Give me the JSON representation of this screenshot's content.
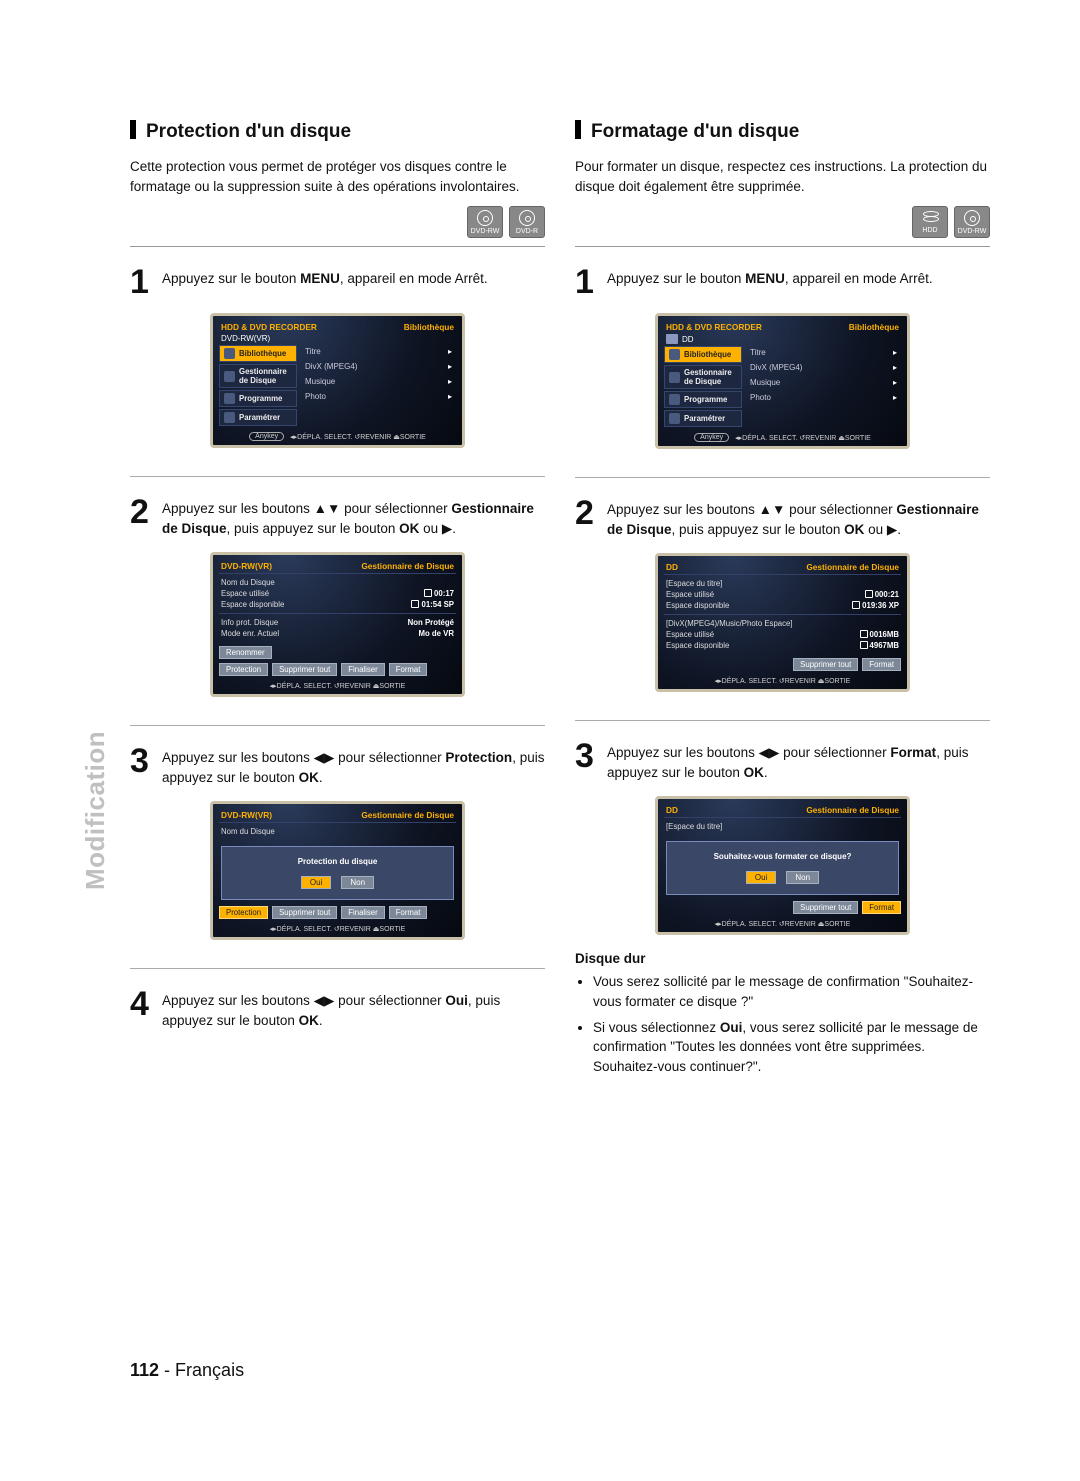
{
  "page": {
    "side_label": "Modification",
    "number": "112",
    "sep": " - ",
    "lang": "Français"
  },
  "left": {
    "title": "Protection d'un disque",
    "intro": "Cette protection vous permet de protéger vos disques contre le formatage ou la suppression suite à des opérations involontaires.",
    "icons": [
      "DVD-RW",
      "DVD-R"
    ],
    "step1": {
      "num": "1",
      "text_a": "Appuyez sur le bouton ",
      "bold_a": "MENU",
      "text_b": ", appareil en mode Arrêt."
    },
    "screen1": {
      "header_left": "HDD & DVD RECORDER",
      "header_right": "Bibliothèque",
      "crumb": "DVD-RW(VR)",
      "side": [
        "Bibliothèque",
        "Gestionnaire de Disque",
        "Programme",
        "Paramétrer"
      ],
      "side_sel": 0,
      "opts": [
        "Titre",
        "DivX (MPEG4)",
        "Musique",
        "Photo"
      ],
      "footer_pill": "Anykey",
      "footer": "◂▸DÉPLA.   SELECT.   ↺REVENIR   ⏏SORTIE"
    },
    "step2": {
      "num": "2",
      "text_a": "Appuyez sur les boutons ▲▼ pour sélectionner ",
      "bold_a": "Gestionnaire de Disque",
      "text_b": ", puis appuyez sur le bouton ",
      "bold_b": "OK",
      "text_c": " ou ▶."
    },
    "screen2": {
      "header_left": "DVD-RW(VR)",
      "header_right": "Gestionnaire de Disque",
      "lines1": [
        {
          "k": "Nom du Disque",
          "v": ""
        },
        {
          "k": "Espace utilisé",
          "v": "00:17"
        },
        {
          "k": "Espace disponible",
          "v": "01:54 SP"
        }
      ],
      "lines2": [
        {
          "k": "Info prot. Disque",
          "v": "Non Protégé"
        },
        {
          "k": "Mode enr. Actuel",
          "v": "Mo de VR"
        }
      ],
      "row1": [
        "Renommer"
      ],
      "row2": [
        "Protection",
        "Supprimer tout",
        "Finaliser",
        "Format"
      ],
      "footer": "◂▸DÉPLA.   SELECT.   ↺REVENIR   ⏏SORTIE"
    },
    "step3": {
      "num": "3",
      "text_a": "Appuyez sur les boutons ◀▶ pour sélectionner ",
      "bold_a": "Protection",
      "text_b": ", puis appuyez sur le bouton ",
      "bold_b": "OK",
      "text_c": "."
    },
    "screen3": {
      "header_left": "DVD-RW(VR)",
      "header_right": "Gestionnaire de Disque",
      "line_k": "Nom du Disque",
      "dialog_title": "Protection du disque",
      "yes": "Oui",
      "no": "Non",
      "row": [
        "Protection",
        "Supprimer tout",
        "Finaliser",
        "Format"
      ],
      "footer": "◂▸DÉPLA.   SELECT.   ↺REVENIR   ⏏SORTIE"
    },
    "step4": {
      "num": "4",
      "text_a": "Appuyez sur les boutons ◀▶ pour sélectionner ",
      "bold_a": "Oui",
      "text_b": ", puis appuyez sur le bouton ",
      "bold_b": "OK",
      "text_c": "."
    }
  },
  "right": {
    "title": "Formatage d'un disque",
    "intro": "Pour formater un disque, respectez ces instructions. La protection du disque doit également être supprimée.",
    "icons": [
      "HDD",
      "DVD-RW"
    ],
    "step1": {
      "num": "1",
      "text_a": "Appuyez sur le bouton ",
      "bold_a": "MENU",
      "text_b": ", appareil en mode Arrêt."
    },
    "screen1": {
      "header_left": "HDD & DVD RECORDER",
      "header_right": "Bibliothèque",
      "crumb": "DD",
      "side": [
        "Bibliothèque",
        "Gestionnaire de Disque",
        "Programme",
        "Paramétrer"
      ],
      "side_sel": 0,
      "opts": [
        "Titre",
        "DivX (MPEG4)",
        "Musique",
        "Photo"
      ],
      "footer_pill": "Anykey",
      "footer": "◂▸DÉPLA.   SELECT.   ↺REVENIR   ⏏SORTIE"
    },
    "step2": {
      "num": "2",
      "text_a": "Appuyez sur les boutons ▲▼ pour sélectionner ",
      "bold_a": "Gestionnaire de Disque",
      "text_b": ", puis appuyez sur le bouton ",
      "bold_b": "OK",
      "text_c": " ou ▶."
    },
    "screen2": {
      "header_left": "DD",
      "header_right": "Gestionnaire de Disque",
      "group1_title": "[Espace du titre]",
      "group1_lines": [
        {
          "k": "Espace utilisé",
          "v": "000:21"
        },
        {
          "k": "Espace disponible",
          "v": "019:36 XP"
        }
      ],
      "group2_title": "[DivX(MPEG4)/Music/Photo Espace]",
      "group2_lines": [
        {
          "k": "Espace utilisé",
          "v": "0016MB"
        },
        {
          "k": "Espace disponible",
          "v": "4967MB"
        }
      ],
      "row": [
        "Supprimer tout",
        "Format"
      ],
      "footer": "◂▸DÉPLA.   SELECT.   ↺REVENIR   ⏏SORTIE"
    },
    "step3": {
      "num": "3",
      "text_a": "Appuyez sur les boutons ◀▶ pour sélectionner ",
      "bold_a": "Format",
      "text_b": ", puis appuyez sur le bouton ",
      "bold_b": "OK",
      "text_c": "."
    },
    "screen3": {
      "header_left": "DD",
      "header_right": "Gestionnaire de Disque",
      "group_title": "[Espace du titre]",
      "dialog_title": "Souhaitez-vous formater ce disque?",
      "yes": "Oui",
      "no": "Non",
      "row": [
        "Supprimer tout",
        "Format"
      ],
      "footer": "◂▸DÉPLA.   SELECT.   ↺REVENIR   ⏏SORTIE"
    },
    "sub_head": "Disque dur",
    "bullets": [
      "Vous serez sollicité par le message de confirmation \"Souhaitez-vous formater ce disque ?\"",
      "Si vous sélectionnez Oui, vous serez sollicité par le message de confirmation \"Toutes les données vont être supprimées. Souhaitez-vous continuer?\"."
    ],
    "bullet2_bold": "Oui"
  }
}
